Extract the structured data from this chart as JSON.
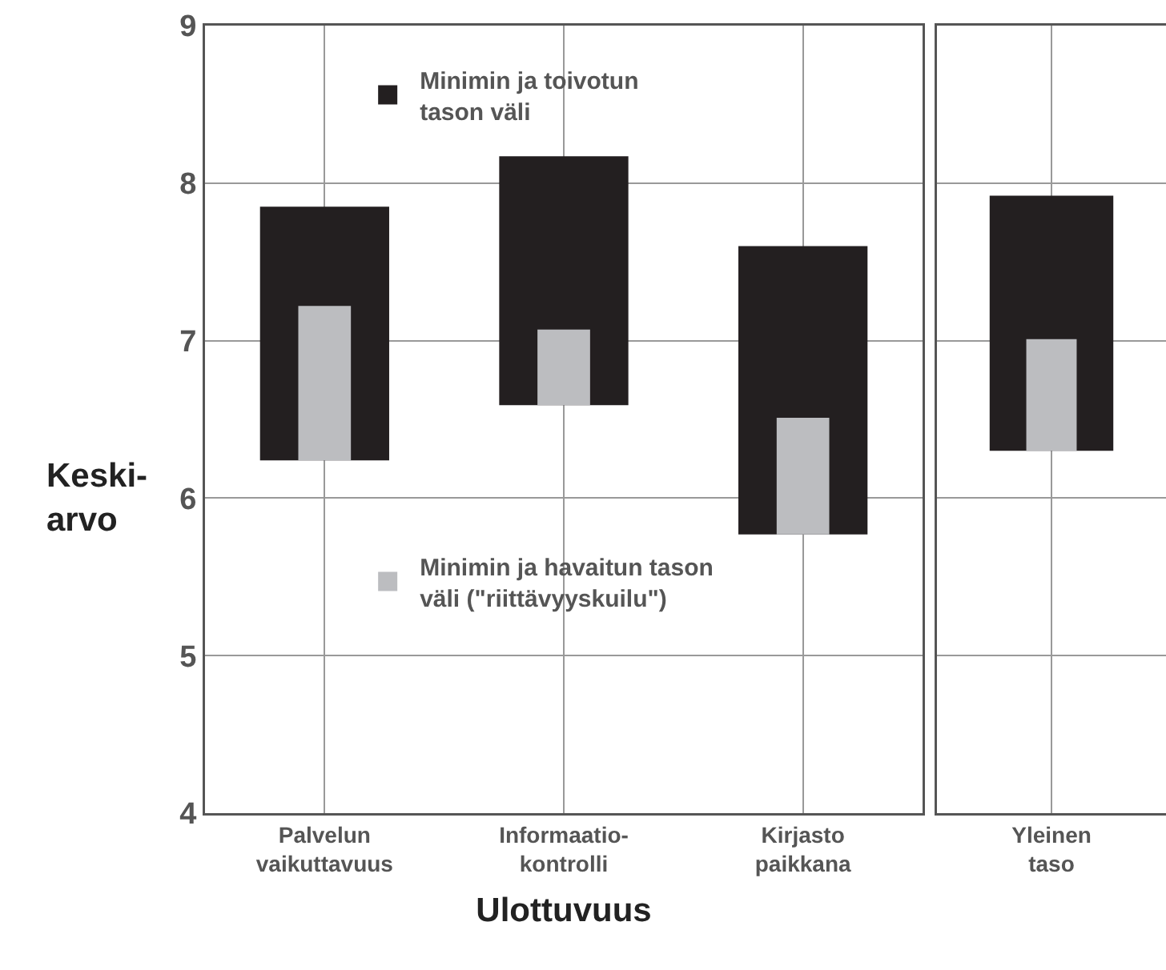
{
  "chart_data": [
    {
      "type": "bar",
      "xlabel": "Ulottuvuus",
      "ylabel": "Keski-\narvo",
      "categories": [
        "Palvelun\nvaikuttavuus",
        "Informaatio-\nkontrolli",
        "Kirjasto\npaikkana"
      ],
      "series": [
        {
          "name": "Minimin ja toivotun\ntason väli",
          "color": "#231f20",
          "base": [
            6.24,
            6.59,
            5.77
          ],
          "values": [
            1.61,
            1.58,
            1.83
          ]
        },
        {
          "name": "Minimin ja havaitun tason\nväli (\"riittävyyskuilu\")",
          "color": "#bcbdc0",
          "base": [
            6.24,
            6.59,
            5.77
          ],
          "values": [
            0.98,
            0.48,
            0.74
          ]
        }
      ],
      "ylim": [
        4,
        9
      ],
      "yticks": [
        4,
        5,
        6,
        7,
        8,
        9
      ],
      "grid": true,
      "legend": "top"
    },
    {
      "type": "bar",
      "categories": [
        "Yleinen\ntaso"
      ],
      "series": [
        {
          "color": "#231f20",
          "base": [
            6.3
          ],
          "values": [
            1.62
          ]
        },
        {
          "color": "#bcbdc0",
          "base": [
            6.3
          ],
          "values": [
            0.71
          ]
        }
      ],
      "ylim": [
        4,
        9
      ],
      "yticks": [
        4,
        5,
        6,
        7,
        8,
        9
      ],
      "grid": true,
      "tick_labels": "x"
    }
  ]
}
